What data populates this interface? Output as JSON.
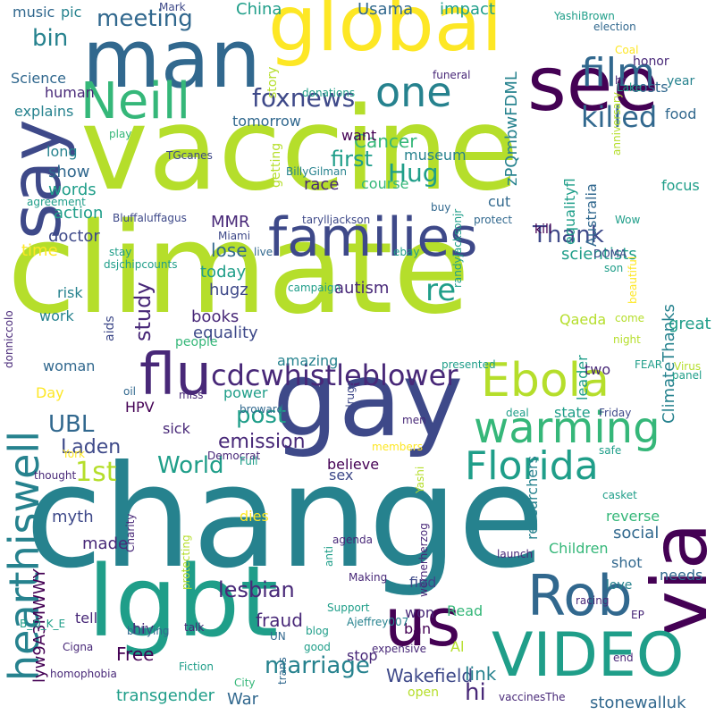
{
  "palette": {
    "yellow": "#fde725",
    "lime": "#b5de2b",
    "green": "#35b779",
    "teal": "#1f9e89",
    "cyan": "#26828e",
    "blue": "#31688e",
    "indigo": "#3e4989",
    "purple": "#482878",
    "dark": "#440154"
  },
  "words": [
    {
      "text": "change",
      "color": "cyan",
      "orientation": "horizontal"
    },
    {
      "text": "climate",
      "color": "lime",
      "orientation": "horizontal"
    },
    {
      "text": "vaccine",
      "color": "lime",
      "orientation": "horizontal"
    },
    {
      "text": "gay",
      "color": "indigo",
      "orientation": "horizontal"
    },
    {
      "text": "lgbt",
      "color": "teal",
      "orientation": "horizontal"
    },
    {
      "text": "global",
      "color": "yellow",
      "orientation": "horizontal"
    },
    {
      "text": "man",
      "color": "blue",
      "orientation": "horizontal"
    },
    {
      "text": "see",
      "color": "dark",
      "orientation": "horizontal"
    },
    {
      "text": "say",
      "color": "indigo",
      "orientation": "vertical"
    },
    {
      "text": "via",
      "color": "dark",
      "orientation": "vertical"
    },
    {
      "text": "us",
      "color": "dark",
      "orientation": "horizontal"
    },
    {
      "text": "VIDEO",
      "color": "teal",
      "orientation": "horizontal"
    },
    {
      "text": "Rob",
      "color": "blue",
      "orientation": "horizontal"
    },
    {
      "text": "families",
      "color": "indigo",
      "orientation": "horizontal"
    },
    {
      "text": "flu",
      "color": "purple",
      "orientation": "horizontal"
    },
    {
      "text": "Neill",
      "color": "green",
      "orientation": "horizontal"
    },
    {
      "text": "one",
      "color": "cyan",
      "orientation": "horizontal"
    },
    {
      "text": "film",
      "color": "blue",
      "orientation": "horizontal"
    },
    {
      "text": "Ebola",
      "color": "lime",
      "orientation": "horizontal"
    },
    {
      "text": "warming",
      "color": "green",
      "orientation": "horizontal"
    },
    {
      "text": "Florida",
      "color": "teal",
      "orientation": "horizontal"
    },
    {
      "text": "hearthiswell",
      "color": "cyan",
      "orientation": "vertical"
    },
    {
      "text": "cdcwhistleblower",
      "color": "purple",
      "orientation": "horizontal"
    },
    {
      "text": "killed",
      "color": "blue",
      "orientation": "horizontal"
    },
    {
      "text": "meeting",
      "color": "blue",
      "orientation": "horizontal"
    },
    {
      "text": "foxnews",
      "color": "indigo",
      "orientation": "horizontal"
    },
    {
      "text": "bin",
      "color": "cyan",
      "orientation": "horizontal"
    },
    {
      "text": "UBL",
      "color": "blue",
      "orientation": "horizontal"
    },
    {
      "text": "Laden",
      "color": "indigo",
      "orientation": "horizontal"
    },
    {
      "text": "1st",
      "color": "lime",
      "orientation": "horizontal"
    },
    {
      "text": "World",
      "color": "teal",
      "orientation": "horizontal"
    },
    {
      "text": "lesbian",
      "color": "purple",
      "orientation": "horizontal"
    },
    {
      "text": "marriage",
      "color": "cyan",
      "orientation": "horizontal"
    },
    {
      "text": "transgender",
      "color": "teal",
      "orientation": "horizontal"
    },
    {
      "text": "Wakefield",
      "color": "indigo",
      "orientation": "horizontal"
    },
    {
      "text": "stonewalluk",
      "color": "blue",
      "orientation": "horizontal"
    },
    {
      "text": "post",
      "color": "teal",
      "orientation": "horizontal"
    },
    {
      "text": "emission",
      "color": "purple",
      "orientation": "horizontal"
    },
    {
      "text": "Hug",
      "color": "teal",
      "orientation": "horizontal"
    },
    {
      "text": "first",
      "color": "teal",
      "orientation": "horizontal"
    },
    {
      "text": "Thank",
      "color": "indigo",
      "orientation": "horizontal"
    },
    {
      "text": "re",
      "color": "teal",
      "orientation": "horizontal"
    },
    {
      "text": "study",
      "color": "purple",
      "orientation": "vertical"
    },
    {
      "text": "ClimateThanks",
      "color": "cyan",
      "orientation": "vertical"
    },
    {
      "text": "zPQmbwFDML",
      "color": "cyan",
      "orientation": "vertical"
    },
    {
      "text": "lyw9A3MWWY",
      "color": "dark",
      "orientation": "vertical"
    },
    {
      "text": "Cancer",
      "color": "green",
      "orientation": "horizontal"
    },
    {
      "text": "hi",
      "color": "purple",
      "orientation": "horizontal"
    },
    {
      "text": "link",
      "color": "cyan",
      "orientation": "horizontal"
    },
    {
      "text": "War",
      "color": "blue",
      "orientation": "horizontal"
    },
    {
      "text": "Free",
      "color": "dark",
      "orientation": "horizontal"
    },
    {
      "text": "fraud",
      "color": "purple",
      "orientation": "horizontal"
    },
    {
      "text": "lose",
      "color": "blue",
      "orientation": "horizontal"
    },
    {
      "text": "China",
      "color": "teal",
      "orientation": "horizontal"
    },
    {
      "text": "impact",
      "color": "teal",
      "orientation": "horizontal"
    },
    {
      "text": "Usama",
      "color": "blue",
      "orientation": "horizontal"
    },
    {
      "text": "music",
      "color": "blue",
      "orientation": "horizontal"
    },
    {
      "text": "pic",
      "color": "cyan",
      "orientation": "horizontal"
    },
    {
      "text": "Science",
      "color": "blue",
      "orientation": "horizontal"
    },
    {
      "text": "explains",
      "color": "cyan",
      "orientation": "horizontal"
    },
    {
      "text": "human",
      "color": "purple",
      "orientation": "horizontal"
    },
    {
      "text": "long",
      "color": "cyan",
      "orientation": "horizontal"
    },
    {
      "text": "show",
      "color": "blue",
      "orientation": "horizontal"
    },
    {
      "text": "words",
      "color": "teal",
      "orientation": "horizontal"
    },
    {
      "text": "action",
      "color": "teal",
      "orientation": "horizontal"
    },
    {
      "text": "time",
      "color": "yellow",
      "orientation": "horizontal"
    },
    {
      "text": "doctor",
      "color": "indigo",
      "orientation": "horizontal"
    },
    {
      "text": "MMR",
      "color": "purple",
      "orientation": "horizontal"
    },
    {
      "text": "today",
      "color": "teal",
      "orientation": "horizontal"
    },
    {
      "text": "hugz",
      "color": "indigo",
      "orientation": "horizontal"
    },
    {
      "text": "books",
      "color": "purple",
      "orientation": "horizontal"
    },
    {
      "text": "equality",
      "color": "indigo",
      "orientation": "horizontal"
    },
    {
      "text": "scientists",
      "color": "teal",
      "orientation": "horizontal"
    },
    {
      "text": "amazing",
      "color": "cyan",
      "orientation": "horizontal"
    },
    {
      "text": "race",
      "color": "purple",
      "orientation": "horizontal"
    },
    {
      "text": "museum",
      "color": "cyan",
      "orientation": "horizontal"
    },
    {
      "text": "cut",
      "color": "blue",
      "orientation": "horizontal"
    },
    {
      "text": "kill",
      "color": "dark",
      "orientation": "horizontal"
    },
    {
      "text": "Australia",
      "color": "blue",
      "orientation": "vertical"
    },
    {
      "text": "equalityfl",
      "color": "teal",
      "orientation": "vertical"
    },
    {
      "text": "course",
      "color": "green",
      "orientation": "horizontal"
    },
    {
      "text": "tomorrow",
      "color": "blue",
      "orientation": "horizontal"
    },
    {
      "text": "want",
      "color": "dark",
      "orientation": "horizontal"
    },
    {
      "text": "focus",
      "color": "teal",
      "orientation": "horizontal"
    },
    {
      "text": "food",
      "color": "blue",
      "orientation": "horizontal"
    },
    {
      "text": "costs",
      "color": "blue",
      "orientation": "horizontal"
    },
    {
      "text": "honor",
      "color": "purple",
      "orientation": "horizontal"
    },
    {
      "text": "year",
      "color": "cyan",
      "orientation": "horizontal"
    },
    {
      "text": "great",
      "color": "teal",
      "orientation": "horizontal"
    },
    {
      "text": "Qaeda",
      "color": "lime",
      "orientation": "horizontal"
    },
    {
      "text": "leader",
      "color": "teal",
      "orientation": "vertical"
    },
    {
      "text": "two",
      "color": "purple",
      "orientation": "horizontal"
    },
    {
      "text": "state",
      "color": "teal",
      "orientation": "horizontal"
    },
    {
      "text": "sick",
      "color": "purple",
      "orientation": "horizontal"
    },
    {
      "text": "HPV",
      "color": "dark",
      "orientation": "horizontal"
    },
    {
      "text": "Day",
      "color": "yellow",
      "orientation": "horizontal"
    },
    {
      "text": "woman",
      "color": "blue",
      "orientation": "horizontal"
    },
    {
      "text": "work",
      "color": "cyan",
      "orientation": "horizontal"
    },
    {
      "text": "risk",
      "color": "cyan",
      "orientation": "horizontal"
    },
    {
      "text": "aids",
      "color": "indigo",
      "orientation": "vertical"
    },
    {
      "text": "autism",
      "color": "purple",
      "orientation": "horizontal"
    },
    {
      "text": "getting",
      "color": "lime",
      "orientation": "vertical"
    },
    {
      "text": "story",
      "color": "lime",
      "orientation": "vertical"
    },
    {
      "text": "people",
      "color": "green",
      "orientation": "horizontal"
    },
    {
      "text": "power",
      "color": "teal",
      "orientation": "horizontal"
    },
    {
      "text": "believe",
      "color": "dark",
      "orientation": "horizontal"
    },
    {
      "text": "sex",
      "color": "indigo",
      "orientation": "horizontal"
    },
    {
      "text": "myth",
      "color": "indigo",
      "orientation": "horizontal"
    },
    {
      "text": "made",
      "color": "purple",
      "orientation": "horizontal"
    },
    {
      "text": "dies",
      "color": "yellow",
      "orientation": "horizontal"
    },
    {
      "text": "find",
      "color": "indigo",
      "orientation": "horizontal"
    },
    {
      "text": "won",
      "color": "purple",
      "orientation": "horizontal"
    },
    {
      "text": "tell",
      "color": "purple",
      "orientation": "horizontal"
    },
    {
      "text": "hiv",
      "color": "purple",
      "orientation": "horizontal"
    },
    {
      "text": "ban",
      "color": "dark",
      "orientation": "horizontal"
    },
    {
      "text": "stop",
      "color": "purple",
      "orientation": "horizontal"
    },
    {
      "text": "open",
      "color": "lime",
      "orientation": "horizontal"
    },
    {
      "text": "Read",
      "color": "green",
      "orientation": "horizontal"
    },
    {
      "text": "Al",
      "color": "lime",
      "orientation": "horizontal"
    },
    {
      "text": "researchers",
      "color": "cyan",
      "orientation": "vertical"
    },
    {
      "text": "reverse",
      "color": "green",
      "orientation": "horizontal"
    },
    {
      "text": "social",
      "color": "blue",
      "orientation": "horizontal"
    },
    {
      "text": "Children",
      "color": "green",
      "orientation": "horizontal"
    },
    {
      "text": "shot",
      "color": "blue",
      "orientation": "horizontal"
    },
    {
      "text": "needs",
      "color": "blue",
      "orientation": "horizontal"
    },
    {
      "text": "love",
      "color": "cyan",
      "orientation": "horizontal"
    },
    {
      "text": "donniccolo",
      "color": "purple",
      "orientation": "vertical"
    },
    {
      "text": "TGcanes",
      "color": "indigo",
      "orientation": "horizontal"
    },
    {
      "text": "YashiBrown",
      "color": "teal",
      "orientation": "horizontal"
    },
    {
      "text": "election",
      "color": "blue",
      "orientation": "horizontal"
    },
    {
      "text": "Mark",
      "color": "indigo",
      "orientation": "horizontal"
    },
    {
      "text": "Coal",
      "color": "yellow",
      "orientation": "horizontal"
    },
    {
      "text": "hr",
      "color": "purple",
      "orientation": "horizontal"
    },
    {
      "text": "Lake",
      "color": "teal",
      "orientation": "horizontal"
    },
    {
      "text": "funeral",
      "color": "purple",
      "orientation": "horizontal"
    },
    {
      "text": "donations",
      "color": "teal",
      "orientation": "horizontal"
    },
    {
      "text": "play",
      "color": "green",
      "orientation": "horizontal"
    },
    {
      "text": "BillyGilman",
      "color": "cyan",
      "orientation": "horizontal"
    },
    {
      "text": "agreement",
      "color": "teal",
      "orientation": "horizontal"
    },
    {
      "text": "Bluffaluffagus",
      "color": "indigo",
      "orientation": "horizontal"
    },
    {
      "text": "tarylljackson",
      "color": "indigo",
      "orientation": "horizontal"
    },
    {
      "text": "protect",
      "color": "blue",
      "orientation": "horizontal"
    },
    {
      "text": "buy",
      "color": "blue",
      "orientation": "horizontal"
    },
    {
      "text": "Wow",
      "color": "teal",
      "orientation": "horizontal"
    },
    {
      "text": "anniversary",
      "color": "lime",
      "orientation": "vertical"
    },
    {
      "text": "Miami",
      "color": "indigo",
      "orientation": "horizontal"
    },
    {
      "text": "stay",
      "color": "teal",
      "orientation": "horizontal"
    },
    {
      "text": "live",
      "color": "blue",
      "orientation": "horizontal"
    },
    {
      "text": "ebay",
      "color": "teal",
      "orientation": "horizontal"
    },
    {
      "text": "dsjchipcounts",
      "color": "teal",
      "orientation": "horizontal"
    },
    {
      "text": "randyjacksonjr",
      "color": "teal",
      "orientation": "vertical"
    },
    {
      "text": "DOMA",
      "color": "indigo",
      "orientation": "horizontal"
    },
    {
      "text": "campaign",
      "color": "teal",
      "orientation": "horizontal"
    },
    {
      "text": "son",
      "color": "teal",
      "orientation": "horizontal"
    },
    {
      "text": "beautiful",
      "color": "yellow",
      "orientation": "vertical"
    },
    {
      "text": "come",
      "color": "lime",
      "orientation": "horizontal"
    },
    {
      "text": "night",
      "color": "lime",
      "orientation": "horizontal"
    },
    {
      "text": "presented",
      "color": "teal",
      "orientation": "horizontal"
    },
    {
      "text": "FEAR",
      "color": "teal",
      "orientation": "horizontal"
    },
    {
      "text": "Virus",
      "color": "lime",
      "orientation": "horizontal"
    },
    {
      "text": "panel",
      "color": "teal",
      "orientation": "horizontal"
    },
    {
      "text": "oil",
      "color": "blue",
      "orientation": "horizontal"
    },
    {
      "text": "miss",
      "color": "purple",
      "orientation": "horizontal"
    },
    {
      "text": "broward",
      "color": "blue",
      "orientation": "horizontal"
    },
    {
      "text": "drugs",
      "color": "indigo",
      "orientation": "vertical"
    },
    {
      "text": "deal",
      "color": "teal",
      "orientation": "horizontal"
    },
    {
      "text": "Friday",
      "color": "indigo",
      "orientation": "horizontal"
    },
    {
      "text": "York",
      "color": "yellow",
      "orientation": "horizontal"
    },
    {
      "text": "Democrat",
      "color": "purple",
      "orientation": "horizontal"
    },
    {
      "text": "Full",
      "color": "teal",
      "orientation": "horizontal"
    },
    {
      "text": "men",
      "color": "purple",
      "orientation": "horizontal"
    },
    {
      "text": "members",
      "color": "yellow",
      "orientation": "horizontal"
    },
    {
      "text": "safe",
      "color": "teal",
      "orientation": "horizontal"
    },
    {
      "text": "thought",
      "color": "purple",
      "orientation": "horizontal"
    },
    {
      "text": "Yashi",
      "color": "lime",
      "orientation": "vertical"
    },
    {
      "text": "casket",
      "color": "teal",
      "orientation": "horizontal"
    },
    {
      "text": "B_O_K_E",
      "color": "teal",
      "orientation": "horizontal"
    },
    {
      "text": "Charity",
      "color": "purple",
      "orientation": "vertical"
    },
    {
      "text": "agenda",
      "color": "purple",
      "orientation": "horizontal"
    },
    {
      "text": "Making",
      "color": "purple",
      "orientation": "horizontal"
    },
    {
      "text": "protecting",
      "color": "lime",
      "orientation": "vertical"
    },
    {
      "text": "anti",
      "color": "teal",
      "orientation": "vertical"
    },
    {
      "text": "launch",
      "color": "purple",
      "orientation": "horizontal"
    },
    {
      "text": "wernerherzog",
      "color": "purple",
      "orientation": "vertical"
    },
    {
      "text": "Support",
      "color": "teal",
      "orientation": "horizontal"
    },
    {
      "text": "Ajeffrey007",
      "color": "cyan",
      "orientation": "horizontal"
    },
    {
      "text": "racing",
      "color": "purple",
      "orientation": "horizontal"
    },
    {
      "text": "EP",
      "color": "purple",
      "orientation": "horizontal"
    },
    {
      "text": "bullying",
      "color": "blue",
      "orientation": "horizontal"
    },
    {
      "text": "talk",
      "color": "purple",
      "orientation": "horizontal"
    },
    {
      "text": "blog",
      "color": "teal",
      "orientation": "horizontal"
    },
    {
      "text": "Cigna",
      "color": "purple",
      "orientation": "horizontal"
    },
    {
      "text": "UN",
      "color": "blue",
      "orientation": "horizontal"
    },
    {
      "text": "good",
      "color": "teal",
      "orientation": "horizontal"
    },
    {
      "text": "expensive",
      "color": "purple",
      "orientation": "horizontal"
    },
    {
      "text": "end",
      "color": "purple",
      "orientation": "horizontal"
    },
    {
      "text": "trans",
      "color": "blue",
      "orientation": "vertical"
    },
    {
      "text": "homophobia",
      "color": "purple",
      "orientation": "horizontal"
    },
    {
      "text": "Fiction",
      "color": "teal",
      "orientation": "horizontal"
    },
    {
      "text": "City",
      "color": "green",
      "orientation": "horizontal"
    },
    {
      "text": "vaccinesThe",
      "color": "purple",
      "orientation": "horizontal"
    }
  ]
}
